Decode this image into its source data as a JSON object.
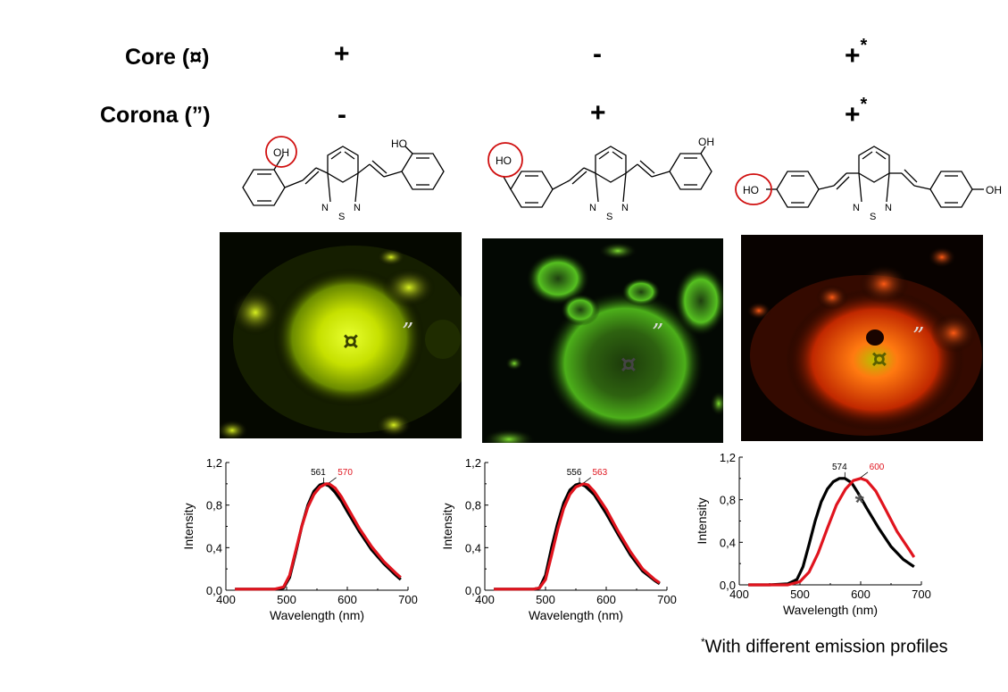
{
  "rows": {
    "core_label": "Core (¤)",
    "corona_label": "Corona (”)"
  },
  "columns": [
    {
      "core": "+",
      "core_sup": "",
      "corona": "-",
      "corona_sup": ""
    },
    {
      "core": "-",
      "core_sup": "",
      "corona": "+",
      "corona_sup": ""
    },
    {
      "core": "+",
      "core_sup": "*",
      "corona": "+",
      "corona_sup": "*"
    }
  ],
  "molecules": [
    {
      "oh_left": "OH",
      "oh_right": "HO",
      "n_left": "N",
      "s": "S",
      "n_right": "N"
    },
    {
      "oh_left": "HO",
      "oh_right": "OH",
      "n_left": "N",
      "s": "S",
      "n_right": "N"
    },
    {
      "oh_left": "HO",
      "oh_right": "OH",
      "n_left": "N",
      "s": "S",
      "n_right": "N"
    }
  ],
  "images": [
    {
      "core_mark": "¤",
      "corona_mark": "”",
      "tint": "#c8e000"
    },
    {
      "core_mark": "¤",
      "corona_mark": "”",
      "tint": "#4caf1a"
    },
    {
      "core_mark": "¤",
      "corona_mark": "”",
      "tint": "#ff5a14"
    }
  ],
  "colors": {
    "black_series": "#000000",
    "red_series": "#e0141e"
  },
  "chart_data": [
    {
      "type": "line",
      "xlabel": "Wavelength (nm)",
      "ylabel": "Intensity",
      "xlim": [
        400,
        700
      ],
      "ylim": [
        0,
        1.2
      ],
      "xticks": [
        "400",
        "500",
        "600",
        "700"
      ],
      "yticks": [
        "0,0",
        "0,4",
        "0,8",
        "1,2"
      ],
      "series": [
        {
          "color": "#000000",
          "peak_label": "561",
          "x": [
            415,
            450,
            480,
            495,
            505,
            515,
            525,
            535,
            545,
            555,
            561,
            570,
            580,
            590,
            600,
            620,
            640,
            660,
            680,
            688
          ],
          "y": [
            0.01,
            0.01,
            0.01,
            0.02,
            0.12,
            0.35,
            0.6,
            0.8,
            0.93,
            0.99,
            1.0,
            0.98,
            0.92,
            0.84,
            0.74,
            0.55,
            0.38,
            0.25,
            0.14,
            0.1
          ]
        },
        {
          "color": "#e0141e",
          "peak_label": "570",
          "x": [
            415,
            450,
            480,
            495,
            505,
            515,
            525,
            535,
            545,
            555,
            565,
            570,
            580,
            590,
            600,
            620,
            640,
            660,
            680,
            688
          ],
          "y": [
            0.01,
            0.01,
            0.01,
            0.03,
            0.14,
            0.37,
            0.6,
            0.78,
            0.9,
            0.97,
            1.0,
            1.0,
            0.96,
            0.88,
            0.78,
            0.58,
            0.41,
            0.27,
            0.16,
            0.12
          ]
        }
      ]
    },
    {
      "type": "line",
      "xlabel": "Wavelength (nm)",
      "ylabel": "Intensity",
      "xlim": [
        400,
        700
      ],
      "ylim": [
        0,
        1.2
      ],
      "xticks": [
        "400",
        "500",
        "600",
        "700"
      ],
      "yticks": [
        "0,0",
        "0,4",
        "0,8",
        "1,2"
      ],
      "series": [
        {
          "color": "#000000",
          "peak_label": "556",
          "x": [
            415,
            450,
            480,
            490,
            500,
            510,
            520,
            530,
            540,
            550,
            556,
            565,
            580,
            600,
            620,
            640,
            660,
            680,
            688
          ],
          "y": [
            0.01,
            0.01,
            0.01,
            0.02,
            0.14,
            0.4,
            0.63,
            0.82,
            0.94,
            0.99,
            1.0,
            0.98,
            0.9,
            0.72,
            0.52,
            0.33,
            0.18,
            0.09,
            0.06
          ]
        },
        {
          "color": "#e0141e",
          "peak_label": "563",
          "x": [
            415,
            450,
            480,
            490,
            500,
            510,
            520,
            530,
            540,
            550,
            563,
            570,
            580,
            600,
            620,
            640,
            660,
            680,
            688
          ],
          "y": [
            0.01,
            0.01,
            0.01,
            0.02,
            0.1,
            0.33,
            0.57,
            0.77,
            0.9,
            0.97,
            1.0,
            0.99,
            0.93,
            0.76,
            0.55,
            0.36,
            0.2,
            0.1,
            0.07
          ]
        }
      ]
    },
    {
      "type": "line",
      "xlabel": "Wavelength (nm)",
      "ylabel": "Intensity",
      "xlim": [
        400,
        700
      ],
      "ylim": [
        0,
        1.2
      ],
      "xticks": [
        "400",
        "500",
        "600",
        "700"
      ],
      "yticks": [
        "0,0",
        "0,4",
        "0,8",
        "1,2"
      ],
      "annotation": "*",
      "series": [
        {
          "color": "#000000",
          "peak_label": "574",
          "x": [
            415,
            450,
            480,
            495,
            505,
            515,
            525,
            535,
            545,
            555,
            565,
            574,
            585,
            595,
            610,
            630,
            650,
            670,
            688
          ],
          "y": [
            0.0,
            0.0,
            0.01,
            0.05,
            0.17,
            0.38,
            0.6,
            0.78,
            0.9,
            0.97,
            1.0,
            1.0,
            0.96,
            0.87,
            0.72,
            0.53,
            0.36,
            0.24,
            0.17
          ]
        },
        {
          "color": "#e0141e",
          "peak_label": "600",
          "x": [
            415,
            450,
            480,
            500,
            515,
            530,
            545,
            560,
            575,
            588,
            600,
            610,
            625,
            640,
            660,
            680,
            688
          ],
          "y": [
            0.0,
            0.0,
            0.0,
            0.03,
            0.12,
            0.3,
            0.53,
            0.75,
            0.9,
            0.98,
            1.0,
            0.98,
            0.88,
            0.72,
            0.5,
            0.33,
            0.26
          ]
        }
      ]
    }
  ],
  "footnote": {
    "mark": "*",
    "text": "With different emission profiles"
  }
}
